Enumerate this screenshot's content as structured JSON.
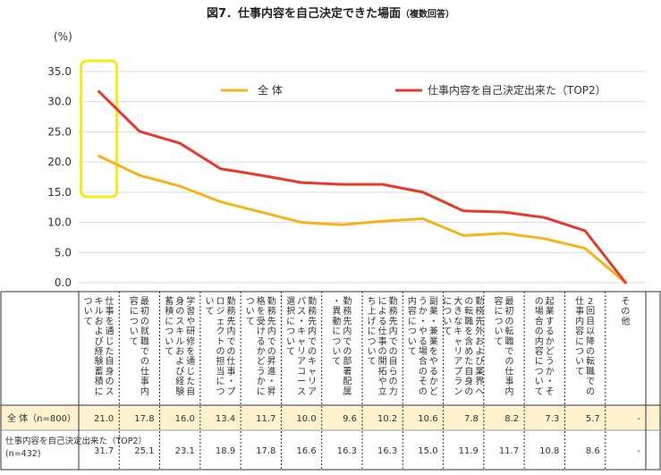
{
  "title": "図7．仕事内容を自己決定できた場面",
  "subtitle": "（複数回答）",
  "unit": "(%)",
  "colors": {
    "all": "#F5B21B",
    "top2": "#E5392A",
    "highlight": "#F2EA1D",
    "band": "#FFF2CC"
  },
  "chart_data": {
    "type": "line",
    "ylim": [
      0,
      35
    ],
    "yticks": [
      "0.0",
      "5.0",
      "10.0",
      "15.0",
      "20.0",
      "25.0",
      "30.0",
      "35.0"
    ],
    "grid": true,
    "legend": "top",
    "categories": [
      "仕事を通じた自身のスキルおよび経験蓄積について",
      "最初の就職での仕事内容について",
      "学習や研修を通じた自身のスキルおよび経験蓄積について",
      "勤務先内での仕事・プロジェクトの担当について",
      "勤務先内での昇進・昇格を受けるかどうかについて",
      "勤務先内でのキャリアパス・キャリアコース選択について",
      "勤務先内での部署配属・異動について",
      "勤務先内での自らの力による仕事の開拓や立ち上げについて",
      "副業・兼業をやるかどうか・やる場合のその内容について",
      "勤務先外および業界への転職を含めた自身の大きなキャリアプランについて",
      "最初の転職での仕事内容について",
      "起業するかどうか・その場合の内容について",
      "2回目以降の転職での仕事内容について",
      "その他"
    ],
    "series": [
      {
        "name": "全 体",
        "table_label": "全 体（n=800）",
        "values": [
          21.0,
          17.8,
          16.0,
          13.4,
          11.7,
          10.0,
          9.6,
          10.2,
          10.6,
          7.8,
          8.2,
          7.3,
          5.7,
          0
        ],
        "labels": [
          "21.0",
          "17.8",
          "16.0",
          "13.4",
          "11.7",
          "10.0",
          "9.6",
          "10.2",
          "10.6",
          "7.8",
          "8.2",
          "7.3",
          "5.7",
          "-"
        ]
      },
      {
        "name": "仕事内容を自己決定出来た（TOP2）",
        "table_label": "仕事内容を自己決定出来た（TOP2）",
        "table_n": "(n=432)",
        "values": [
          31.7,
          25.1,
          23.1,
          18.9,
          17.8,
          16.6,
          16.3,
          16.3,
          15.0,
          11.9,
          11.7,
          10.8,
          8.6,
          0
        ],
        "labels": [
          "31.7",
          "25.1",
          "23.1",
          "18.9",
          "17.8",
          "16.6",
          "16.3",
          "16.3",
          "15.0",
          "11.9",
          "11.7",
          "10.8",
          "8.6",
          "-"
        ]
      }
    ]
  }
}
